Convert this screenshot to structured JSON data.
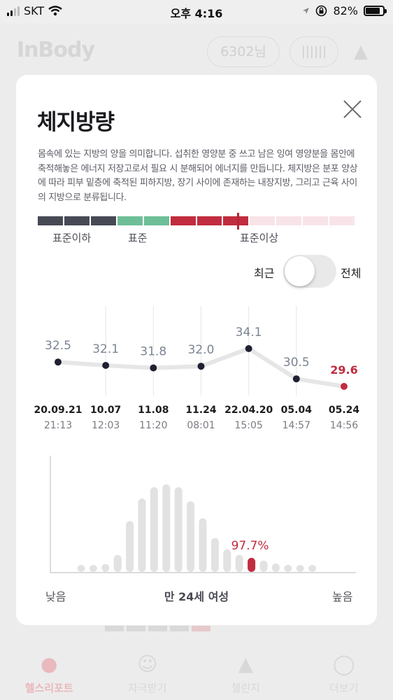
{
  "status_bar": {
    "carrier": "SKT",
    "time": "오후 4:16",
    "battery": "82%",
    "battery_level": 0.82
  },
  "background_app": {
    "logo": "InBody",
    "user": "6302님",
    "tabs": [
      {
        "label": "헬스리포트",
        "active": true
      },
      {
        "label": "자극받기",
        "active": false
      },
      {
        "label": "챌린지",
        "active": false
      },
      {
        "label": "더보기",
        "active": false
      }
    ]
  },
  "modal": {
    "title": "체지방량",
    "description": "몸속에 있는 지방의 양을 의미합니다. 섭취한 영양분 중 쓰고 남은 잉여 영양분을 몸안에 축적해놓은 에너지 저장고로서 필요 시 분해되어 에너지를 만듭니다. 체지방은 분포 양상에 따라 피부 밑층에 축적된 피하지방, 장기 사이에 존재하는 내장지방, 그리고 근육 사이의 지방으로 분류됩니다.",
    "scale": {
      "labels": [
        "표준이하",
        "표준",
        "표준이상"
      ],
      "colors": {
        "below": "#474a55",
        "standard": "#6ebf98",
        "above": "#c12d3f",
        "above_light": "#f8e4e8"
      }
    },
    "toggle": {
      "left": "최근",
      "right": "전체",
      "state": "최근"
    }
  },
  "chart_data": [
    {
      "type": "line",
      "title": "",
      "x": [
        "20.09.21",
        "10.07",
        "11.08",
        "11.24",
        "22.04.20",
        "05.04",
        "05.24"
      ],
      "times": [
        "21:13",
        "12:03",
        "11:20",
        "08:01",
        "15:05",
        "14:57",
        "14:56"
      ],
      "series": [
        {
          "values": [
            32.5,
            32.1,
            31.8,
            32.0,
            34.1,
            30.5,
            29.6
          ]
        }
      ],
      "highlight_index": 6,
      "highlight_color": "#c12d3f",
      "grid": true
    },
    {
      "type": "bar",
      "title": "",
      "values": [
        1,
        1,
        1.4,
        3,
        9,
        13,
        15,
        15.5,
        15,
        12.5,
        9.5,
        6,
        4,
        3,
        2.5,
        2,
        1.5,
        1,
        1,
        1
      ],
      "highlight_index": 14,
      "highlight_label": "97.7%",
      "highlight_color": "#c12d3f",
      "xlabel_left": "낮음",
      "xlabel_center": "만 24세 여성",
      "xlabel_right": "높음"
    }
  ]
}
